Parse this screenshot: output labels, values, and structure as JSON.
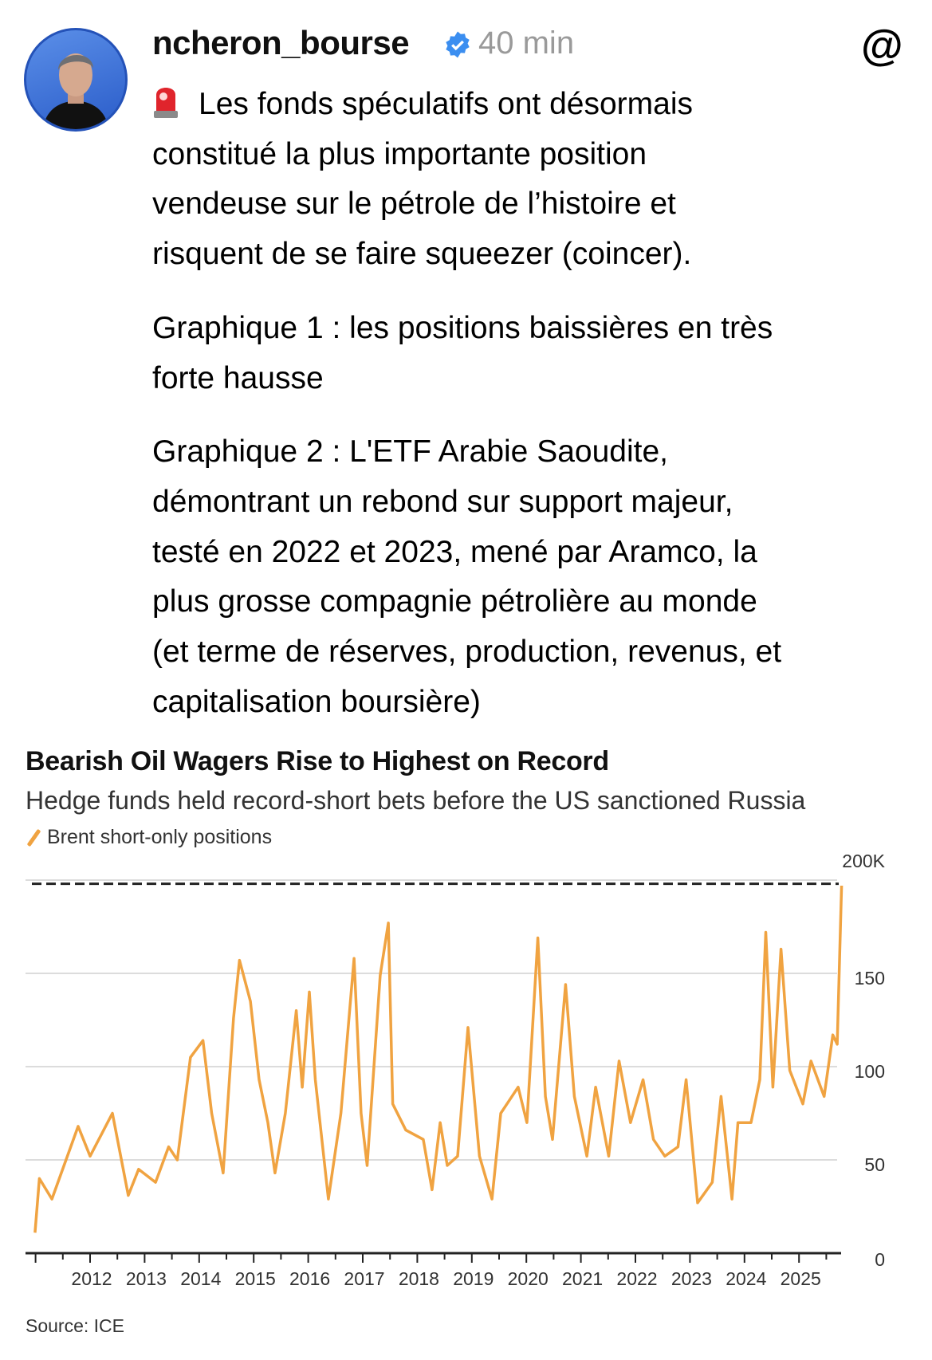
{
  "post": {
    "username": "ncheron_bourse",
    "time": "40 min",
    "paragraphs": [
      [
        "Les fonds spéculatifs ont désormais",
        "constitué la plus importante position",
        "vendeuse sur le pétrole de l’histoire et",
        "risquent de se faire squeezer (coincer)."
      ],
      [
        "Graphique 1 : les positions baissières en très",
        "forte hausse"
      ],
      [
        "Graphique 2 : L'ETF Arabie Saoudite,",
        "démontrant un rebond sur support majeur,",
        "testé en 2022 et 2023, mené par Aramco, la",
        "plus grosse compagnie pétrolière au monde",
        "(et terme de réserves, production, revenus, et",
        "capitalisation boursière)"
      ]
    ]
  },
  "icons": {
    "verified": "verified-badge-icon",
    "threads": "threads-logo-icon",
    "siren": "siren-emoji-icon"
  },
  "colors": {
    "accent": "#f0a341",
    "verified": "#3b8ef0"
  },
  "chart_data": {
    "type": "line",
    "title": "Bearish Oil Wagers Rise to Highest on Record",
    "subtitle": "Hedge funds held record-short bets before the US sanctioned Russia",
    "legend": [
      "Brent short-only positions"
    ],
    "source": "Source: ICE",
    "ylabel": "",
    "ylim": [
      0,
      200
    ],
    "yticks": [
      "0",
      "50",
      "100",
      "150",
      "200K"
    ],
    "ytick_values": [
      0,
      50,
      100,
      150,
      200
    ],
    "xticks": [
      "2012",
      "2013",
      "2014",
      "2015",
      "2016",
      "2017",
      "2018",
      "2019",
      "2020",
      "2021",
      "2022",
      "2023",
      "2024",
      "2025"
    ],
    "record_line": 198,
    "series": [
      {
        "name": "Brent short-only positions",
        "x": [
          2010.99,
          2011.07,
          2011.3,
          2011.78,
          2012.0,
          2012.41,
          2012.7,
          2012.89,
          2013.2,
          2013.44,
          2013.6,
          2013.84,
          2014.07,
          2014.23,
          2014.44,
          2014.63,
          2014.74,
          2014.94,
          2015.1,
          2015.26,
          2015.39,
          2015.58,
          2015.78,
          2015.89,
          2016.02,
          2016.13,
          2016.37,
          2016.6,
          2016.84,
          2016.97,
          2017.08,
          2017.32,
          2017.47,
          2017.55,
          2017.79,
          2018.11,
          2018.27,
          2018.42,
          2018.55,
          2018.74,
          2018.93,
          2019.14,
          2019.37,
          2019.53,
          2019.85,
          2020.01,
          2020.21,
          2020.35,
          2020.48,
          2020.72,
          2020.88,
          2021.11,
          2021.27,
          2021.51,
          2021.7,
          2021.91,
          2022.14,
          2022.33,
          2022.54,
          2022.78,
          2022.93,
          2023.14,
          2023.41,
          2023.57,
          2023.77,
          2023.88,
          2024.12,
          2024.28,
          2024.39,
          2024.52,
          2024.67,
          2024.83,
          2025.07,
          2025.22,
          2025.46,
          2025.62,
          2025.7,
          2025.78
        ],
        "values": [
          11,
          40,
          29,
          68,
          52,
          75,
          31,
          45,
          38,
          57,
          50,
          105,
          114,
          75,
          43,
          126,
          157,
          135,
          93,
          70,
          43,
          75,
          130,
          89,
          140,
          93,
          29,
          75,
          158,
          75,
          47,
          149,
          177,
          80,
          66,
          61,
          34,
          70,
          47,
          52,
          121,
          52,
          29,
          75,
          89,
          70,
          169,
          84,
          61,
          144,
          84,
          52,
          89,
          52,
          103,
          70,
          93,
          61,
          52,
          57,
          93,
          27,
          38,
          84,
          29,
          70,
          70,
          93,
          172,
          89,
          163,
          98,
          80,
          103,
          84,
          117,
          112,
          197
        ]
      }
    ]
  }
}
